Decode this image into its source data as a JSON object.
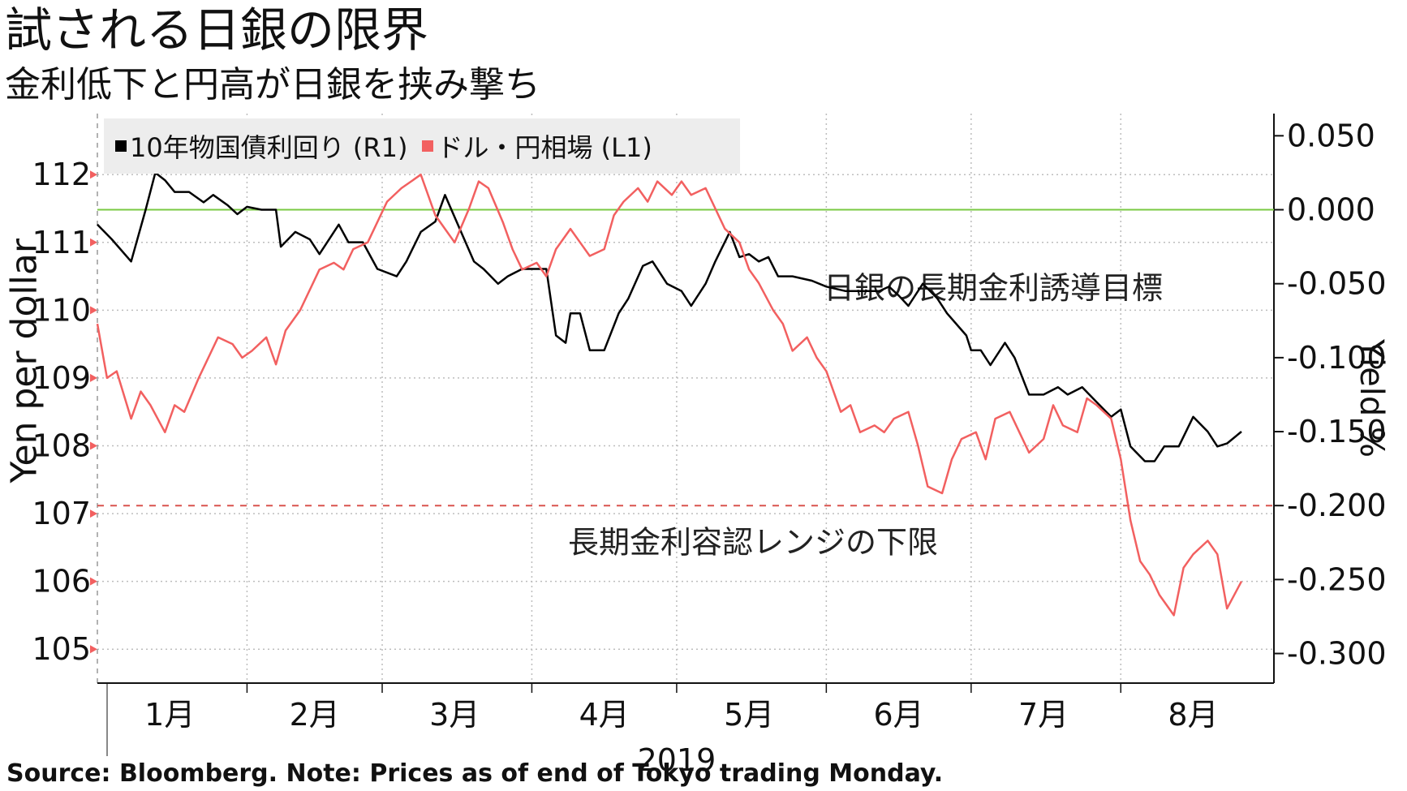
{
  "title": "試される日銀の限界",
  "subtitle": "金利低下と円高が日銀を挟み撃ち",
  "source": "Source: Bloomberg. Note: Prices as of end of Tokyo trading Monday.",
  "legend": [
    {
      "label": "10年物国債利回り (R1)",
      "color": "#000000"
    },
    {
      "label": "ドル・円相場 (L1)",
      "color": "#f26060"
    }
  ],
  "colors": {
    "jgb": "#000000",
    "usdjpy": "#f26060",
    "target_line": "#7ac943",
    "band_line": "#d9534f",
    "grid": "#bdbdbd"
  },
  "chart_data": {
    "type": "line",
    "title": "試される日銀の限界",
    "subtitle": "金利低下と円高が日銀を挟み撃ち",
    "xlabel": "2019",
    "x_ticks": [
      "1月",
      "2月",
      "3月",
      "4月",
      "5月",
      "6月",
      "7月",
      "8月"
    ],
    "x_range": [
      "2019-01-01",
      "2019-08-26"
    ],
    "left_axis": {
      "label": "Yen per dollar",
      "range": [
        104.5,
        112.9
      ],
      "ticks": [
        105,
        106,
        107,
        108,
        109,
        110,
        111,
        112
      ]
    },
    "right_axis": {
      "label": "Yield %",
      "range": [
        -0.32,
        0.065
      ],
      "ticks": [
        "0.050",
        "0.000",
        "-0.050",
        "-0.100",
        "-0.150",
        "-0.200",
        "-0.250",
        "-0.300"
      ]
    },
    "grid": true,
    "legend_position": "top-left",
    "series": [
      {
        "name": "10年物国債利回り (R1)",
        "axis": "right",
        "points": [
          [
            "2019-01-01",
            -0.01
          ],
          [
            "2019-01-04",
            -0.02
          ],
          [
            "2019-01-08",
            -0.035
          ],
          [
            "2019-01-11",
            0.0
          ],
          [
            "2019-01-13",
            0.025
          ],
          [
            "2019-01-15",
            0.02
          ],
          [
            "2019-01-17",
            0.012
          ],
          [
            "2019-01-20",
            0.012
          ],
          [
            "2019-01-23",
            0.005
          ],
          [
            "2019-01-25",
            0.01
          ],
          [
            "2019-01-28",
            0.003
          ],
          [
            "2019-01-30",
            -0.003
          ],
          [
            "2019-02-01",
            0.002
          ],
          [
            "2019-02-04",
            0.0
          ],
          [
            "2019-02-07",
            0.0
          ],
          [
            "2019-02-08",
            -0.025
          ],
          [
            "2019-02-11",
            -0.015
          ],
          [
            "2019-02-14",
            -0.02
          ],
          [
            "2019-02-16",
            -0.03
          ],
          [
            "2019-02-20",
            -0.01
          ],
          [
            "2019-02-22",
            -0.022
          ],
          [
            "2019-02-25",
            -0.022
          ],
          [
            "2019-02-28",
            -0.04
          ],
          [
            "2019-03-04",
            -0.045
          ],
          [
            "2019-03-06",
            -0.035
          ],
          [
            "2019-03-09",
            -0.015
          ],
          [
            "2019-03-12",
            -0.008
          ],
          [
            "2019-03-14",
            0.01
          ],
          [
            "2019-03-16",
            -0.005
          ],
          [
            "2019-03-18",
            -0.02
          ],
          [
            "2019-03-20",
            -0.035
          ],
          [
            "2019-03-22",
            -0.04
          ],
          [
            "2019-03-25",
            -0.05
          ],
          [
            "2019-03-27",
            -0.045
          ],
          [
            "2019-03-30",
            -0.04
          ],
          [
            "2019-04-01",
            -0.04
          ],
          [
            "2019-04-04",
            -0.04
          ],
          [
            "2019-04-06",
            -0.085
          ],
          [
            "2019-04-08",
            -0.09
          ],
          [
            "2019-04-09",
            -0.07
          ],
          [
            "2019-04-11",
            -0.07
          ],
          [
            "2019-04-13",
            -0.095
          ],
          [
            "2019-04-16",
            -0.095
          ],
          [
            "2019-04-19",
            -0.07
          ],
          [
            "2019-04-21",
            -0.06
          ],
          [
            "2019-04-24",
            -0.038
          ],
          [
            "2019-04-26",
            -0.035
          ],
          [
            "2019-04-29",
            -0.05
          ],
          [
            "2019-05-02",
            -0.055
          ],
          [
            "2019-05-04",
            -0.065
          ],
          [
            "2019-05-07",
            -0.05
          ],
          [
            "2019-05-09",
            -0.035
          ],
          [
            "2019-05-12",
            -0.015
          ],
          [
            "2019-05-14",
            -0.032
          ],
          [
            "2019-05-16",
            -0.03
          ],
          [
            "2019-05-18",
            -0.035
          ],
          [
            "2019-05-20",
            -0.032
          ],
          [
            "2019-05-22",
            -0.045
          ],
          [
            "2019-05-25",
            -0.045
          ],
          [
            "2019-05-29",
            -0.048
          ],
          [
            "2019-06-01",
            -0.052
          ],
          [
            "2019-06-05",
            -0.055
          ],
          [
            "2019-06-07",
            -0.055
          ],
          [
            "2019-06-12",
            -0.055
          ],
          [
            "2019-06-14",
            -0.052
          ],
          [
            "2019-06-16",
            -0.058
          ],
          [
            "2019-06-18",
            -0.065
          ],
          [
            "2019-06-21",
            -0.05
          ],
          [
            "2019-06-24",
            -0.06
          ],
          [
            "2019-06-26",
            -0.07
          ],
          [
            "2019-06-30",
            -0.085
          ],
          [
            "2019-07-01",
            -0.095
          ],
          [
            "2019-07-03",
            -0.095
          ],
          [
            "2019-07-05",
            -0.105
          ],
          [
            "2019-07-08",
            -0.09
          ],
          [
            "2019-07-10",
            -0.1
          ],
          [
            "2019-07-13",
            -0.125
          ],
          [
            "2019-07-16",
            -0.125
          ],
          [
            "2019-07-19",
            -0.12
          ],
          [
            "2019-07-21",
            -0.125
          ],
          [
            "2019-07-24",
            -0.12
          ],
          [
            "2019-07-27",
            -0.13
          ],
          [
            "2019-07-30",
            -0.14
          ],
          [
            "2019-08-01",
            -0.135
          ],
          [
            "2019-08-03",
            -0.16
          ],
          [
            "2019-08-06",
            -0.17
          ],
          [
            "2019-08-08",
            -0.17
          ],
          [
            "2019-08-10",
            -0.16
          ],
          [
            "2019-08-13",
            -0.16
          ],
          [
            "2019-08-16",
            -0.14
          ],
          [
            "2019-08-19",
            -0.15
          ],
          [
            "2019-08-21",
            -0.16
          ],
          [
            "2019-08-23",
            -0.158
          ],
          [
            "2019-08-26",
            -0.15
          ]
        ]
      },
      {
        "name": "ドル・円相場 (L1)",
        "axis": "left",
        "points": [
          [
            "2019-01-01",
            109.8
          ],
          [
            "2019-01-03",
            109.0
          ],
          [
            "2019-01-05",
            109.1
          ],
          [
            "2019-01-08",
            108.4
          ],
          [
            "2019-01-10",
            108.8
          ],
          [
            "2019-01-12",
            108.6
          ],
          [
            "2019-01-15",
            108.2
          ],
          [
            "2019-01-17",
            108.6
          ],
          [
            "2019-01-19",
            108.5
          ],
          [
            "2019-01-22",
            109.0
          ],
          [
            "2019-01-24",
            109.3
          ],
          [
            "2019-01-26",
            109.6
          ],
          [
            "2019-01-29",
            109.5
          ],
          [
            "2019-01-31",
            109.3
          ],
          [
            "2019-02-02",
            109.4
          ],
          [
            "2019-02-05",
            109.6
          ],
          [
            "2019-02-07",
            109.2
          ],
          [
            "2019-02-09",
            109.7
          ],
          [
            "2019-02-12",
            110.0
          ],
          [
            "2019-02-14",
            110.3
          ],
          [
            "2019-02-16",
            110.6
          ],
          [
            "2019-02-19",
            110.7
          ],
          [
            "2019-02-21",
            110.6
          ],
          [
            "2019-02-23",
            110.9
          ],
          [
            "2019-02-26",
            111.0
          ],
          [
            "2019-02-28",
            111.3
          ],
          [
            "2019-03-02",
            111.6
          ],
          [
            "2019-03-05",
            111.8
          ],
          [
            "2019-03-07",
            111.9
          ],
          [
            "2019-03-09",
            112.0
          ],
          [
            "2019-03-12",
            111.4
          ],
          [
            "2019-03-14",
            111.2
          ],
          [
            "2019-03-16",
            111.0
          ],
          [
            "2019-03-19",
            111.5
          ],
          [
            "2019-03-21",
            111.9
          ],
          [
            "2019-03-23",
            111.8
          ],
          [
            "2019-03-26",
            111.3
          ],
          [
            "2019-03-28",
            110.9
          ],
          [
            "2019-03-30",
            110.6
          ],
          [
            "2019-04-02",
            110.7
          ],
          [
            "2019-04-04",
            110.5
          ],
          [
            "2019-04-06",
            110.9
          ],
          [
            "2019-04-09",
            111.2
          ],
          [
            "2019-04-11",
            111.0
          ],
          [
            "2019-04-13",
            110.8
          ],
          [
            "2019-04-16",
            110.9
          ],
          [
            "2019-04-18",
            111.4
          ],
          [
            "2019-04-20",
            111.6
          ],
          [
            "2019-04-23",
            111.8
          ],
          [
            "2019-04-25",
            111.6
          ],
          [
            "2019-04-27",
            111.9
          ],
          [
            "2019-04-30",
            111.7
          ],
          [
            "2019-05-02",
            111.9
          ],
          [
            "2019-05-04",
            111.7
          ],
          [
            "2019-05-07",
            111.8
          ],
          [
            "2019-05-09",
            111.5
          ],
          [
            "2019-05-11",
            111.2
          ],
          [
            "2019-05-14",
            111.0
          ],
          [
            "2019-05-16",
            110.6
          ],
          [
            "2019-05-18",
            110.4
          ],
          [
            "2019-05-21",
            110.0
          ],
          [
            "2019-05-23",
            109.8
          ],
          [
            "2019-05-25",
            109.4
          ],
          [
            "2019-05-28",
            109.6
          ],
          [
            "2019-05-30",
            109.3
          ],
          [
            "2019-06-01",
            109.1
          ],
          [
            "2019-06-04",
            108.5
          ],
          [
            "2019-06-06",
            108.6
          ],
          [
            "2019-06-08",
            108.2
          ],
          [
            "2019-06-11",
            108.3
          ],
          [
            "2019-06-13",
            108.2
          ],
          [
            "2019-06-15",
            108.4
          ],
          [
            "2019-06-18",
            108.5
          ],
          [
            "2019-06-20",
            108.0
          ],
          [
            "2019-06-22",
            107.4
          ],
          [
            "2019-06-25",
            107.3
          ],
          [
            "2019-06-27",
            107.8
          ],
          [
            "2019-06-29",
            108.1
          ],
          [
            "2019-07-02",
            108.2
          ],
          [
            "2019-07-04",
            107.8
          ],
          [
            "2019-07-06",
            108.4
          ],
          [
            "2019-07-09",
            108.5
          ],
          [
            "2019-07-11",
            108.2
          ],
          [
            "2019-07-13",
            107.9
          ],
          [
            "2019-07-16",
            108.1
          ],
          [
            "2019-07-18",
            108.6
          ],
          [
            "2019-07-20",
            108.3
          ],
          [
            "2019-07-23",
            108.2
          ],
          [
            "2019-07-25",
            108.7
          ],
          [
            "2019-07-27",
            108.6
          ],
          [
            "2019-07-30",
            108.4
          ],
          [
            "2019-08-01",
            107.8
          ],
          [
            "2019-08-03",
            106.9
          ],
          [
            "2019-08-05",
            106.3
          ],
          [
            "2019-08-07",
            106.1
          ],
          [
            "2019-08-09",
            105.8
          ],
          [
            "2019-08-12",
            105.5
          ],
          [
            "2019-08-14",
            106.2
          ],
          [
            "2019-08-16",
            106.4
          ],
          [
            "2019-08-19",
            106.6
          ],
          [
            "2019-08-21",
            106.4
          ],
          [
            "2019-08-23",
            105.6
          ],
          [
            "2019-08-26",
            106.0
          ]
        ]
      }
    ],
    "annotations": [
      {
        "text": "日銀の長期金利誘導目標",
        "axis": "right",
        "value": 0.0,
        "line_color": "#7ac943"
      },
      {
        "text": "長期金利容認レンジの下限",
        "axis": "right",
        "value": -0.2,
        "line_color": "#d9534f",
        "dashed": true
      }
    ]
  }
}
